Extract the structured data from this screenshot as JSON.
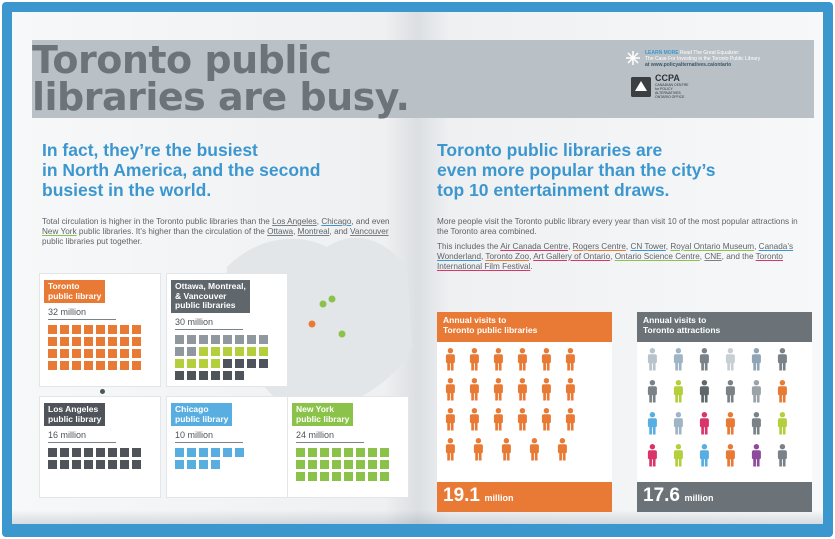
{
  "colors": {
    "brand_blue": "#3d97cf",
    "orange": "#e87a35",
    "dark_gray": "#4e5459",
    "slate": "#6b7378",
    "lime": "#b4cf3c",
    "sky": "#58aee0",
    "green": "#8bc34a"
  },
  "title": {
    "line1": "Toronto public",
    "line2": "libraries are busy."
  },
  "learn_more": {
    "label": "LEARN MORE",
    "line1": "Read The Great Equalizer:",
    "line2": "The Case For Investing in the Toronto Public Library",
    "line3": "at www.policyalternatives.ca/ontario",
    "org_name": "CCPA",
    "org_sub": "CANADIAN CENTRE for POLICY ALTERNATIVES ONTARIO OFFICE"
  },
  "left": {
    "heading_1": "In fact, they’re the busiest",
    "heading_2": "in North America, and the second",
    "heading_3": "busiest in the world.",
    "para": {
      "t1": "Total circulation is higher in the Toronto public libraries than the ",
      "la": "Los Angeles",
      "t2": ", ",
      "chi": "Chicago",
      "t3": ", and even ",
      "ny": "New York",
      "t4": " public libraries. It’s higher than the circulation of the ",
      "ott": "Ottawa",
      "t5": ", ",
      "mon": "Montreal",
      "t6": ", and ",
      "van": "Vancouver",
      "t7": " public libraries put together."
    }
  },
  "cards": [
    {
      "label": "Toronto\npublic library",
      "value": "32 million",
      "color": "#e87a35",
      "squares": 32
    },
    {
      "label": "Ottawa, Montreal,\n& Vancouver\npublic libraries",
      "value": "30 million",
      "color": "#5f676c",
      "squares": 30
    },
    {
      "label": "Los Angeles\npublic library",
      "value": "16 million",
      "color": "#4e5459",
      "squares": 16
    },
    {
      "label": "Chicago\npublic library",
      "value": "10 million",
      "color": "#58aee0",
      "squares": 10
    },
    {
      "label": "New York\npublic library",
      "value": "24 million",
      "color": "#8bc34a",
      "squares": 24
    }
  ],
  "right": {
    "heading_1": "Toronto public libraries are",
    "heading_2": "even more popular than the city’s",
    "heading_3": "top 10 entertainment draws.",
    "para1": "More people visit the Toronto public library every year than visit 10 of the most popular attractions in the Toronto area combined.",
    "para2": {
      "t1": "This includes the ",
      "a1": "Air Canada Centre",
      "a2": "Rogers Centre",
      "a3": "CN Tower",
      "a4": "Royal Ontario Museum",
      "a5": "Canada’s Wonderland",
      "a6": "Toronto Zoo",
      "a7": "Art Gallery of Ontario",
      "a8": "Ontario Science Centre",
      "a9": "CNE",
      "t2": ", and the ",
      "a10": "Toronto International Film Festival",
      "t3": ".",
      "sep": ", "
    }
  },
  "visits": [
    {
      "heading": "Annual visits to\nToronto public libraries",
      "number": "19.1",
      "unit": "million",
      "color": "#e87a35"
    },
    {
      "heading": "Annual visits to\nToronto attractions",
      "number": "17.6",
      "unit": "million",
      "color": "#6b7378"
    }
  ]
}
